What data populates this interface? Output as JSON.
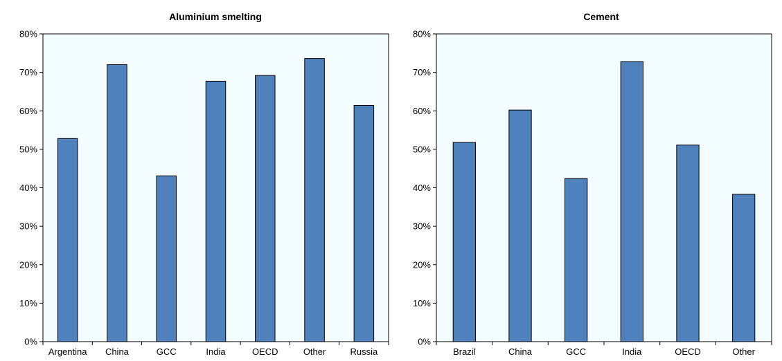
{
  "chart_data": [
    {
      "type": "bar",
      "title": "Aluminium smelting",
      "categories": [
        "Argentina",
        "China",
        "GCC",
        "India",
        "OECD",
        "Other",
        "Russia"
      ],
      "values": [
        0.528,
        0.72,
        0.431,
        0.677,
        0.692,
        0.736,
        0.614
      ],
      "ylim": [
        0,
        0.8
      ],
      "yticks": [
        "0%",
        "10%",
        "20%",
        "30%",
        "40%",
        "50%",
        "60%",
        "70%",
        "80%"
      ],
      "xlabel": "",
      "ylabel": "",
      "grid": false,
      "colors": {
        "bar": "#4f81bd",
        "plot_bg": "#f3fcfe"
      }
    },
    {
      "type": "bar",
      "title": "Cement",
      "categories": [
        "Brazil",
        "China",
        "GCC",
        "India",
        "OECD",
        "Other"
      ],
      "values": [
        0.518,
        0.602,
        0.424,
        0.728,
        0.511,
        0.383
      ],
      "ylim": [
        0,
        0.8
      ],
      "yticks": [
        "0%",
        "10%",
        "20%",
        "30%",
        "40%",
        "50%",
        "60%",
        "70%",
        "80%"
      ],
      "xlabel": "",
      "ylabel": "",
      "grid": false,
      "colors": {
        "bar": "#4f81bd",
        "plot_bg": "#f3fcfe"
      }
    }
  ]
}
